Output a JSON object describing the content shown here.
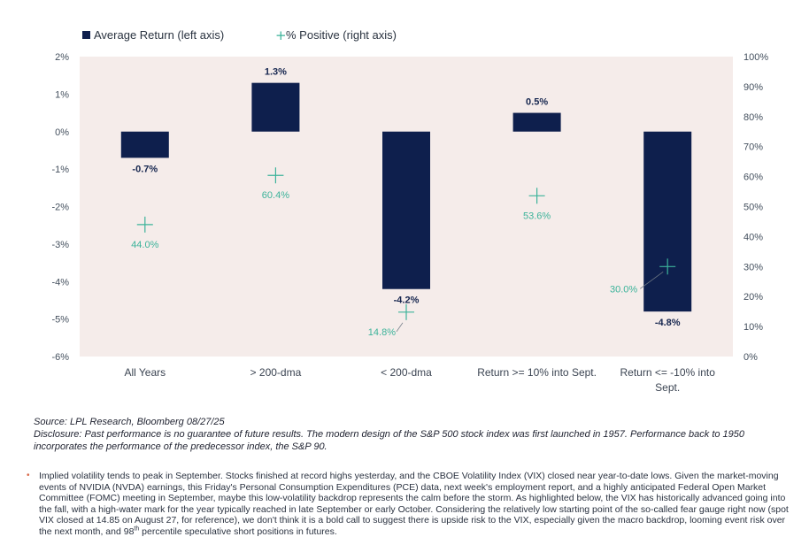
{
  "chart_data": {
    "type": "bar",
    "categories": [
      "All Years",
      "> 200-dma",
      "< 200-dma",
      "Return >= 10% into Sept.",
      "Return <= -10% into Sept."
    ],
    "series": [
      {
        "name": "Average Return (left axis)",
        "axis": "left",
        "kind": "bar",
        "values": [
          -0.7,
          1.3,
          -4.2,
          0.5,
          -4.8
        ],
        "labels": [
          "-0.7%",
          "1.3%",
          "-4.2%",
          "0.5%",
          "-4.8%"
        ]
      },
      {
        "name": "% Positive (right axis)",
        "axis": "right",
        "kind": "marker",
        "values": [
          44.0,
          60.4,
          14.8,
          53.6,
          30.0
        ],
        "labels": [
          "44.0%",
          "60.4%",
          "14.8%",
          "53.6%",
          "30.0%"
        ]
      }
    ],
    "left_axis": {
      "ylim": [
        -6,
        2
      ],
      "ticks": [
        2,
        1,
        0,
        -1,
        -2,
        -3,
        -4,
        -5,
        -6
      ],
      "tick_labels": [
        "2%",
        "1%",
        "0%",
        "-1%",
        "-2%",
        "-3%",
        "-4%",
        "-5%",
        "-6%"
      ]
    },
    "right_axis": {
      "ylim": [
        0,
        100
      ],
      "ticks": [
        100,
        90,
        80,
        70,
        60,
        50,
        40,
        30,
        20,
        10,
        0
      ],
      "tick_labels": [
        "100%",
        "90%",
        "80%",
        "70%",
        "60%",
        "50%",
        "40%",
        "30%",
        "20%",
        "10%",
        "0%"
      ]
    },
    "legend_position": "top-left",
    "grid": false,
    "colors": {
      "bar": "#0e1f4d",
      "marker": "#3cb39a",
      "plot_bg": "#f5ecea"
    }
  },
  "notes": {
    "source": "Source: LPL Research, Bloomberg 08/27/25",
    "disclosure": "Disclosure: Past performance is no guarantee of future results. The modern design of the S&P 500 stock index was first launched in 1957. Performance back to 1950 incorporates the performance of the predecessor index, the S&P 90."
  },
  "bullet": {
    "text": "Implied volatility tends to peak in September. Stocks finished at record highs yesterday, and the CBOE Volatility Index (VIX) closed near year-to-date lows. Given the market-moving events of NVIDIA (NVDA) earnings, this Friday's Personal Consumption Expenditures (PCE) data, next week's employment report, and a highly anticipated Federal Open Market Committee (FOMC) meeting in September, maybe this low-volatility backdrop represents the calm before the storm. As highlighted below, the VIX has historically advanced going into the fall, with a high-water mark for the year typically reached in late September or early October. Considering the relatively low starting point of the so-called fear gauge right now (spot VIX closed at 14.85 on August 27, for reference), we don't think it is a bold call to suggest there is upside risk to the VIX, especially given the macro backdrop, looming event risk over the next month, and 98",
    "sup": "th",
    "tail": " percentile speculative short positions in futures."
  }
}
